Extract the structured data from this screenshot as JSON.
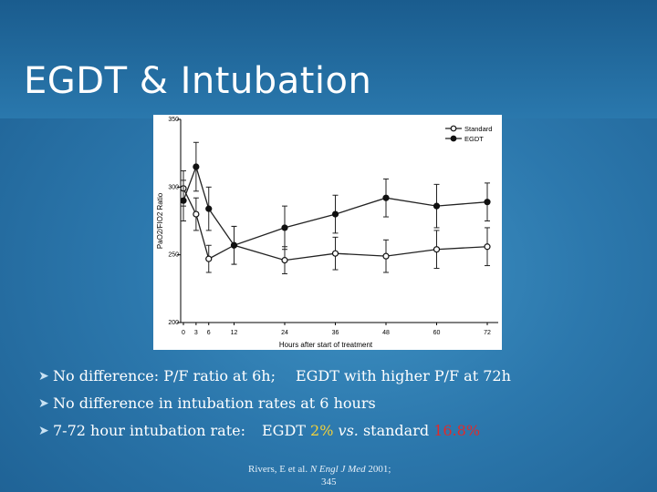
{
  "slide": {
    "title": "EGDT & Intubation"
  },
  "bullets": [
    {
      "part1": "No difference: P/F ratio at 6h;",
      "part2": "EGDT with higher P/F at 72h"
    },
    {
      "text": "No difference in intubation rates at 6 hours"
    },
    {
      "prefix": "7-72 hour  intubation rate:",
      "egdt_label": "EGDT ",
      "egdt_value": "2%",
      "vs": " vs.",
      "std_label": " standard ",
      "std_value": "16.8%"
    }
  ],
  "citation": {
    "prefix": "Rivers, E et al. ",
    "journal": "N Engl J Med",
    "year": "2001;",
    "volume": "345"
  },
  "colors": {
    "accent_yellow": "#f3d23b",
    "accent_red": "#e02b2b"
  },
  "chart_data": {
    "type": "line",
    "xlabel": "Hours after start of treatment",
    "ylabel": "PaO2/FIO2 Ratio",
    "x": [
      0,
      3,
      6,
      12,
      24,
      36,
      48,
      60,
      72
    ],
    "x_ticks": [
      "0",
      "3",
      "6",
      "12",
      "24",
      "36",
      "48",
      "60",
      "72"
    ],
    "y_ticks": [
      "200",
      "250",
      "300",
      "350"
    ],
    "ylim": [
      200,
      350
    ],
    "legend_position": "top-right",
    "series": [
      {
        "name": "Standard",
        "marker": "open-circle",
        "values": [
          299,
          280,
          247,
          257,
          246,
          251,
          249,
          254,
          256
        ],
        "err_plus": [
          13,
          12,
          10,
          14,
          10,
          12,
          12,
          14,
          14
        ],
        "err_minus": [
          13,
          12,
          10,
          14,
          10,
          12,
          12,
          14,
          14
        ]
      },
      {
        "name": "EGDT",
        "marker": "filled-circle",
        "values": [
          290,
          315,
          284,
          257,
          270,
          280,
          292,
          286,
          289
        ],
        "err_plus": [
          15,
          18,
          16,
          14,
          16,
          14,
          14,
          16,
          14
        ],
        "err_minus": [
          15,
          18,
          16,
          14,
          16,
          14,
          14,
          16,
          14
        ]
      }
    ]
  }
}
